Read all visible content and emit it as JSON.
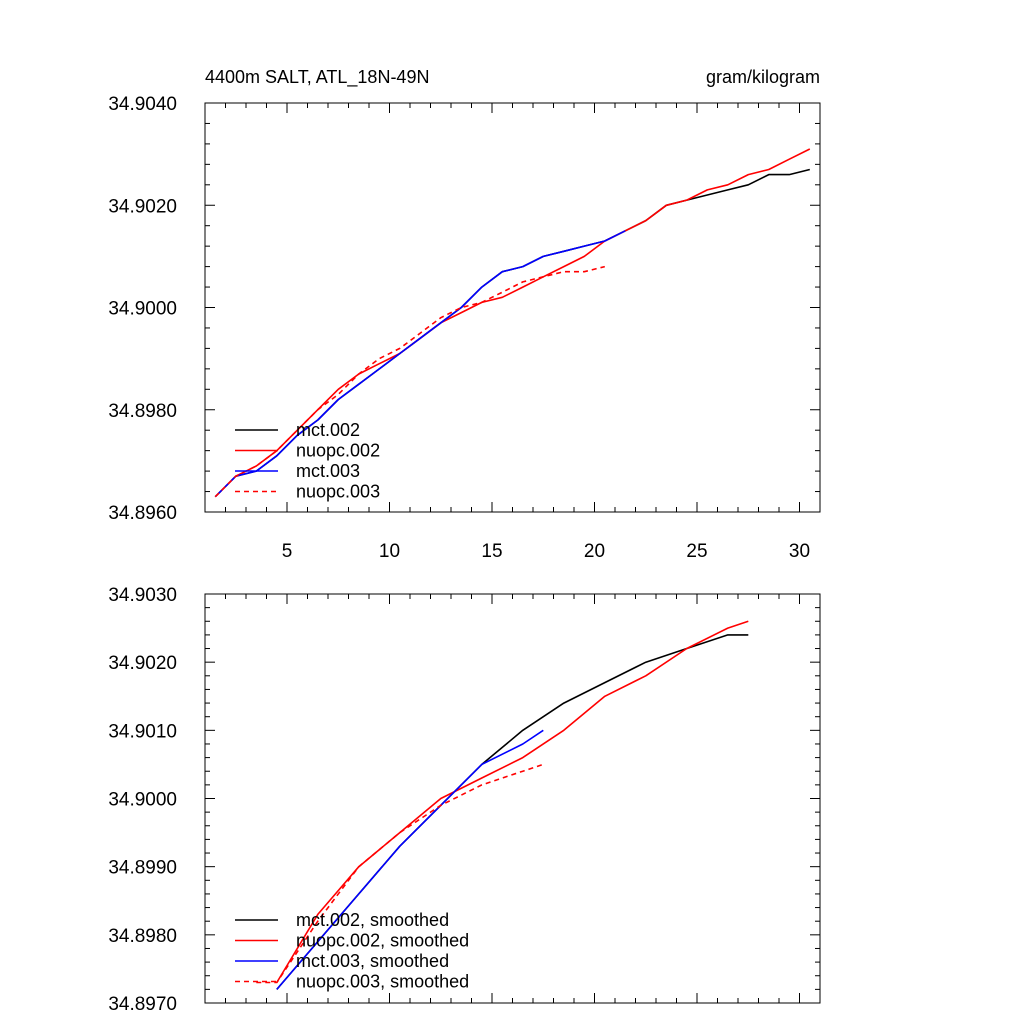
{
  "chart_data": [
    {
      "type": "line",
      "title": "4400m SALT, ATL_18N-49N",
      "units": "gram/kilogram",
      "xlim": [
        1,
        31
      ],
      "ylim": [
        34.896,
        34.904
      ],
      "xticks": [
        5,
        10,
        15,
        20,
        25,
        30
      ],
      "yticks": [
        34.896,
        34.898,
        34.9,
        34.902,
        34.904
      ],
      "ytick_labels": [
        "34.8960",
        "34.8980",
        "34.9000",
        "34.9020",
        "34.9040"
      ],
      "series": [
        {
          "name": "mct.002",
          "color": "#000000",
          "dash": false,
          "x": [
            1.5,
            2.5,
            3.5,
            4.5,
            5.5,
            6.5,
            7.5,
            8.5,
            9.5,
            10.5,
            11.5,
            12.5,
            13.5,
            14.5,
            15.5,
            16.5,
            17.5,
            18.5,
            19.5,
            20.5,
            21.5,
            22.5,
            23.5,
            24.5,
            25.5,
            26.5,
            27.5,
            28.5,
            29.5,
            30.5
          ],
          "y": [
            34.8963,
            34.8967,
            34.8968,
            34.8971,
            34.8975,
            34.8978,
            34.8982,
            34.8985,
            34.8988,
            34.8991,
            34.8994,
            34.8997,
            34.9,
            34.9004,
            34.9007,
            34.9008,
            34.901,
            34.9011,
            34.9012,
            34.9013,
            34.9015,
            34.9017,
            34.902,
            34.9021,
            34.9022,
            34.9023,
            34.9024,
            34.9026,
            34.9026,
            34.9027
          ]
        },
        {
          "name": "nuopc.002",
          "color": "#ff0000",
          "dash": false,
          "x": [
            1.5,
            2.5,
            3.5,
            4.5,
            5.5,
            6.5,
            7.5,
            8.5,
            9.5,
            10.5,
            11.5,
            12.5,
            13.5,
            14.5,
            15.5,
            16.5,
            17.5,
            18.5,
            19.5,
            20.5,
            21.5,
            22.5,
            23.5,
            24.5,
            25.5,
            26.5,
            27.5,
            28.5,
            29.5,
            30.5
          ],
          "y": [
            34.8963,
            34.8967,
            34.8969,
            34.8972,
            34.8976,
            34.898,
            34.8984,
            34.8987,
            34.8989,
            34.8991,
            34.8994,
            34.8997,
            34.8999,
            34.9001,
            34.9002,
            34.9004,
            34.9006,
            34.9008,
            34.901,
            34.9013,
            34.9015,
            34.9017,
            34.902,
            34.9021,
            34.9023,
            34.9024,
            34.9026,
            34.9027,
            34.9029,
            34.9031
          ]
        },
        {
          "name": "mct.003",
          "color": "#0000ff",
          "dash": false,
          "x": [
            1.5,
            2.5,
            3.5,
            4.5,
            5.5,
            6.5,
            7.5,
            8.5,
            9.5,
            10.5,
            11.5,
            12.5,
            13.5,
            14.5,
            15.5,
            16.5,
            17.5,
            18.5,
            19.5,
            20.5,
            21.5
          ],
          "y": [
            34.8963,
            34.8967,
            34.8968,
            34.8971,
            34.8975,
            34.8978,
            34.8982,
            34.8985,
            34.8988,
            34.8991,
            34.8994,
            34.8997,
            34.9,
            34.9004,
            34.9007,
            34.9008,
            34.901,
            34.9011,
            34.9012,
            34.9013,
            34.9015
          ]
        },
        {
          "name": "nuopc.003",
          "color": "#ff0000",
          "dash": true,
          "x": [
            1.5,
            2.5,
            3.5,
            4.5,
            5.5,
            6.5,
            7.5,
            8.5,
            9.5,
            10.5,
            11.5,
            12.5,
            13.5,
            14.5,
            15.5,
            16.5,
            17.5,
            18.5,
            19.5,
            20.5
          ],
          "y": [
            34.8963,
            34.8967,
            34.8969,
            34.8972,
            34.8976,
            34.898,
            34.8983,
            34.8987,
            34.899,
            34.8992,
            34.8995,
            34.8998,
            34.9,
            34.9001,
            34.9003,
            34.9005,
            34.9006,
            34.9007,
            34.9007,
            34.9008
          ]
        }
      ]
    },
    {
      "type": "line",
      "title": "",
      "units": "",
      "xlim": [
        1,
        31
      ],
      "ylim": [
        34.897,
        34.903
      ],
      "xticks": [
        5,
        10,
        15,
        20,
        25,
        30
      ],
      "yticks": [
        34.897,
        34.898,
        34.899,
        34.9,
        34.901,
        34.902,
        34.903
      ],
      "ytick_labels": [
        "34.8970",
        "34.8980",
        "34.8990",
        "34.9000",
        "34.9010",
        "34.9020",
        "34.9030"
      ],
      "series": [
        {
          "name": "mct.002, smoothed",
          "color": "#000000",
          "dash": false,
          "x": [
            4.5,
            6.5,
            8.5,
            10.5,
            12.5,
            14.5,
            16.5,
            18.5,
            20.5,
            22.5,
            24.5,
            26.5,
            27.5
          ],
          "y": [
            34.8972,
            34.8979,
            34.8986,
            34.8993,
            34.8999,
            34.9005,
            34.901,
            34.9014,
            34.9017,
            34.902,
            34.9022,
            34.9024,
            34.9024
          ]
        },
        {
          "name": "nuopc.002, smoothed",
          "color": "#ff0000",
          "dash": false,
          "x": [
            4.5,
            6.5,
            8.5,
            10.5,
            12.5,
            14.5,
            16.5,
            18.5,
            20.5,
            22.5,
            24.5,
            26.5,
            27.5
          ],
          "y": [
            34.8973,
            34.8983,
            34.899,
            34.8995,
            34.9,
            34.9003,
            34.9006,
            34.901,
            34.9015,
            34.9018,
            34.9022,
            34.9025,
            34.9026
          ]
        },
        {
          "name": "mct.003, smoothed",
          "color": "#0000ff",
          "dash": false,
          "x": [
            4.5,
            6.5,
            8.5,
            10.5,
            12.5,
            14.5,
            16.5,
            17.5
          ],
          "y": [
            34.8972,
            34.8979,
            34.8986,
            34.8993,
            34.8999,
            34.9005,
            34.9008,
            34.901
          ]
        },
        {
          "name": "nuopc.003, smoothed",
          "color": "#ff0000",
          "dash": true,
          "x": [
            3.5,
            4.5,
            6.5,
            8.5,
            10.5,
            12.5,
            14.5,
            16.5,
            17.5
          ],
          "y": [
            34.8973,
            34.8973,
            34.8982,
            34.899,
            34.8995,
            34.8999,
            34.9002,
            34.9004,
            34.9005
          ]
        }
      ]
    }
  ]
}
